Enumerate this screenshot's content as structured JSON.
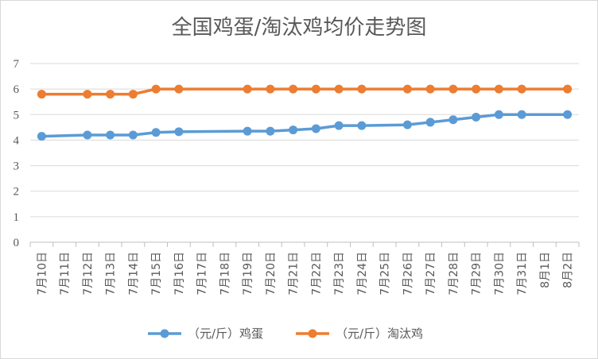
{
  "chart_data": {
    "type": "line",
    "title": "全国鸡蛋/淘汰鸡均价走势图",
    "categories": [
      "7月10日",
      "7月11日",
      "7月12日",
      "7月13日",
      "7月14日",
      "7月15日",
      "7月16日",
      "7月17日",
      "7月18日",
      "7月19日",
      "7月20日",
      "7月21日",
      "7月22日",
      "7月23日",
      "7月24日",
      "7月25日",
      "7月26日",
      "7月27日",
      "7月28日",
      "7月29日",
      "7月30日",
      "7月31日",
      "8月1日",
      "8月2日"
    ],
    "ylim": [
      0,
      7
    ],
    "yticks": [
      "0",
      "1",
      "2",
      "3",
      "4",
      "5",
      "6",
      "7"
    ],
    "grid": true,
    "legend": "bottom",
    "series": [
      {
        "name": "（元/斤）鸡蛋",
        "color": "#5B9BD5",
        "values": [
          4.15,
          null,
          4.2,
          4.2,
          4.2,
          4.3,
          4.33,
          null,
          null,
          4.35,
          4.35,
          4.4,
          4.45,
          4.57,
          4.57,
          null,
          4.6,
          4.7,
          4.8,
          4.9,
          5.0,
          5.0,
          null,
          5.0
        ]
      },
      {
        "name": "（元/斤）淘汰鸡",
        "color": "#ED7D31",
        "values": [
          5.8,
          null,
          5.8,
          5.8,
          5.8,
          6.0,
          6.0,
          null,
          null,
          6.0,
          6.0,
          6.0,
          6.0,
          6.0,
          6.0,
          null,
          6.0,
          6.0,
          6.0,
          6.0,
          6.0,
          6.0,
          null,
          6.0
        ]
      }
    ]
  }
}
